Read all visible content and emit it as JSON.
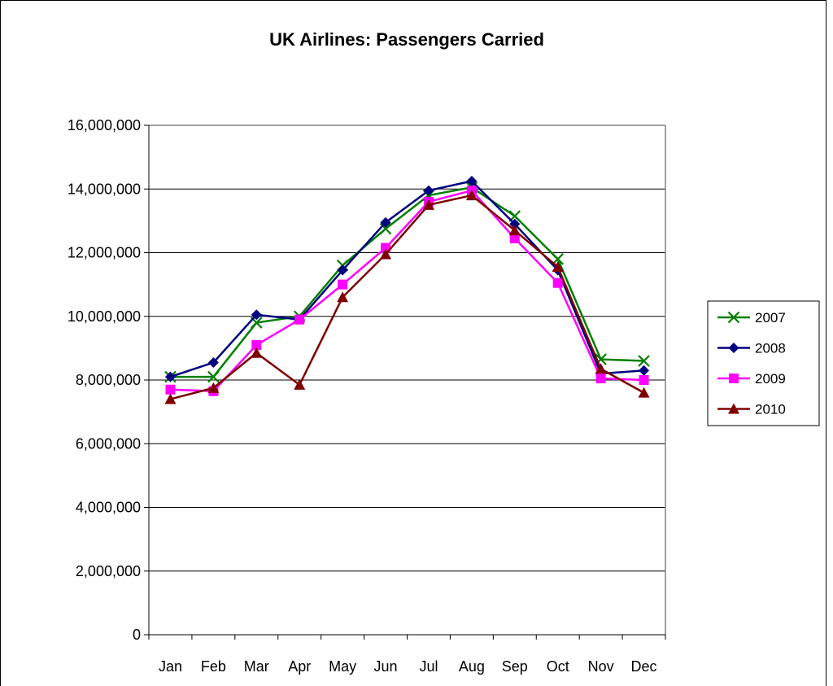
{
  "chart_data": {
    "type": "line",
    "title": "UK Airlines: Passengers Carried",
    "xlabel": "",
    "ylabel": "",
    "categories": [
      "Jan",
      "Feb",
      "Mar",
      "Apr",
      "May",
      "Jun",
      "Jul",
      "Aug",
      "Sep",
      "Oct",
      "Nov",
      "Dec"
    ],
    "ylim": [
      0,
      16000000
    ],
    "yticks": [
      0,
      2000000,
      4000000,
      6000000,
      8000000,
      10000000,
      12000000,
      14000000,
      16000000
    ],
    "ytick_labels": [
      "0",
      "2,000,000",
      "4,000,000",
      "6,000,000",
      "8,000,000",
      "10,000,000",
      "12,000,000",
      "14,000,000",
      "16,000,000"
    ],
    "grid": true,
    "legend_position": "right",
    "series": [
      {
        "name": "2007",
        "color": "#008000",
        "marker": "x",
        "values": [
          8100000,
          8100000,
          9800000,
          10000000,
          11600000,
          12750000,
          13800000,
          14050000,
          13150000,
          11800000,
          8650000,
          8600000
        ]
      },
      {
        "name": "2008",
        "color": "#000080",
        "marker": "diamond",
        "values": [
          8100000,
          8550000,
          10050000,
          9900000,
          11450000,
          12950000,
          13950000,
          14250000,
          12900000,
          11450000,
          8200000,
          8300000
        ]
      },
      {
        "name": "2009",
        "color": "#FF00FF",
        "marker": "square",
        "values": [
          7700000,
          7650000,
          9100000,
          9900000,
          11000000,
          12150000,
          13600000,
          13950000,
          12450000,
          11050000,
          8050000,
          8000000
        ]
      },
      {
        "name": "2010",
        "color": "#800000",
        "marker": "triangle",
        "values": [
          7400000,
          7750000,
          8850000,
          7850000,
          10600000,
          11950000,
          13500000,
          13800000,
          12700000,
          11550000,
          8350000,
          7600000
        ]
      }
    ]
  }
}
